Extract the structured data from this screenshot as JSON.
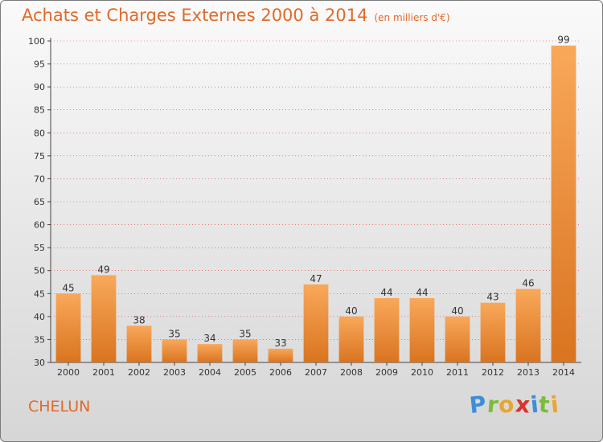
{
  "title": "Achats et Charges Externes 2000 à 2014",
  "unit": "(en milliers d'€)",
  "commune": "CHELUN",
  "logo": {
    "letters": [
      "P",
      "r",
      "o",
      "x",
      "i",
      "t",
      "i"
    ],
    "colors": [
      "#3d8ed6",
      "#7dbb3a",
      "#e8a630",
      "#d9332b",
      "#3d8ed6",
      "#7dbb3a",
      "#e8a630"
    ]
  },
  "colors": {
    "bar_light": "#f9a85a",
    "bar_dark": "#d97420",
    "accent": "#e06a2a",
    "grid": "#ee3333"
  },
  "chart_data": {
    "type": "bar",
    "categories": [
      "2000",
      "2001",
      "2002",
      "2003",
      "2004",
      "2005",
      "2006",
      "2007",
      "2008",
      "2009",
      "2010",
      "2011",
      "2012",
      "2013",
      "2014"
    ],
    "values": [
      45,
      49,
      38,
      35,
      34,
      35,
      33,
      47,
      40,
      44,
      44,
      40,
      43,
      46,
      99
    ],
    "ylim": [
      30,
      100
    ],
    "yticks": [
      30,
      35,
      40,
      45,
      50,
      55,
      60,
      65,
      70,
      75,
      80,
      85,
      90,
      95,
      100
    ],
    "grid": true,
    "data_labels": true
  }
}
